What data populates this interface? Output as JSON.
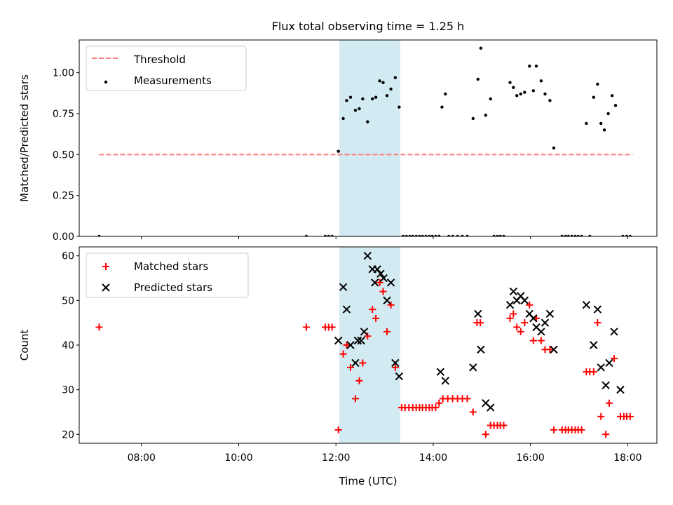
{
  "title": "Flux total observing time = 1.25 h",
  "colors": {
    "threshold": "#ff7f7f",
    "measurement": "#000000",
    "matched": "#ff0000",
    "predicted": "#000000",
    "shade": "#add8e6"
  },
  "chart_data": [
    {
      "type": "scatter",
      "ylabel": "Matched/Predicted stars",
      "ylim": [
        0,
        1.2
      ],
      "yticks": [
        "0.00",
        "0.25",
        "0.50",
        "0.75",
        "1.00"
      ],
      "xlim": [
        6.72,
        18.6
      ],
      "shaded_span": [
        12.07,
        13.32
      ],
      "legend": {
        "placement": "top-left",
        "entries": [
          "Threshold",
          "Measurements"
        ]
      },
      "threshold": {
        "name": "Threshold",
        "value": 0.5,
        "x_range": [
          7.13,
          18.1
        ]
      },
      "series": [
        {
          "name": "Measurements",
          "points": [
            [
              7.13,
              0
            ],
            [
              11.39,
              0
            ],
            [
              11.78,
              0
            ],
            [
              11.85,
              0
            ],
            [
              11.92,
              0
            ],
            [
              12.05,
              0.52
            ],
            [
              12.15,
              0.72
            ],
            [
              12.22,
              0.83
            ],
            [
              12.3,
              0.85
            ],
            [
              12.4,
              0.77
            ],
            [
              12.48,
              0.78
            ],
            [
              12.55,
              0.84
            ],
            [
              12.65,
              0.7
            ],
            [
              12.75,
              0.84
            ],
            [
              12.82,
              0.85
            ],
            [
              12.9,
              0.95
            ],
            [
              12.97,
              0.94
            ],
            [
              13.05,
              0.86
            ],
            [
              13.13,
              0.9
            ],
            [
              13.22,
              0.97
            ],
            [
              13.3,
              0.79
            ],
            [
              13.38,
              0
            ],
            [
              13.45,
              0
            ],
            [
              13.52,
              0
            ],
            [
              13.58,
              0
            ],
            [
              13.65,
              0
            ],
            [
              13.72,
              0
            ],
            [
              13.78,
              0
            ],
            [
              13.85,
              0
            ],
            [
              13.92,
              0
            ],
            [
              13.98,
              0
            ],
            [
              14.05,
              0
            ],
            [
              14.12,
              0
            ],
            [
              14.18,
              0.79
            ],
            [
              14.25,
              0.87
            ],
            [
              14.32,
              0
            ],
            [
              14.4,
              0
            ],
            [
              14.5,
              0
            ],
            [
              14.6,
              0
            ],
            [
              14.7,
              0
            ],
            [
              14.82,
              0.72
            ],
            [
              14.92,
              0.96
            ],
            [
              14.98,
              1.15
            ],
            [
              15.08,
              0.74
            ],
            [
              15.18,
              0.84
            ],
            [
              15.25,
              0
            ],
            [
              15.32,
              0
            ],
            [
              15.38,
              0
            ],
            [
              15.45,
              0
            ],
            [
              15.58,
              0.94
            ],
            [
              15.65,
              0.91
            ],
            [
              15.72,
              0.86
            ],
            [
              15.8,
              0.87
            ],
            [
              15.88,
              0.88
            ],
            [
              15.98,
              1.04
            ],
            [
              16.06,
              0.89
            ],
            [
              16.12,
              1.04
            ],
            [
              16.22,
              0.95
            ],
            [
              16.3,
              0.87
            ],
            [
              16.4,
              0.83
            ],
            [
              16.48,
              0.54
            ],
            [
              16.65,
              0
            ],
            [
              16.72,
              0
            ],
            [
              16.78,
              0
            ],
            [
              16.85,
              0
            ],
            [
              16.92,
              0
            ],
            [
              16.98,
              0
            ],
            [
              17.05,
              0
            ],
            [
              17.15,
              0.69
            ],
            [
              17.22,
              0
            ],
            [
              17.3,
              0.85
            ],
            [
              17.38,
              0.93
            ],
            [
              17.45,
              0.69
            ],
            [
              17.52,
              0.65
            ],
            [
              17.6,
              0.75
            ],
            [
              17.68,
              0.86
            ],
            [
              17.75,
              0.8
            ],
            [
              17.9,
              0
            ],
            [
              17.98,
              0
            ],
            [
              18.05,
              0
            ]
          ]
        }
      ]
    },
    {
      "type": "scatter",
      "xlabel": "Time (UTC)",
      "ylabel": "Count",
      "ylim": [
        18,
        62
      ],
      "yticks": [
        "20",
        "30",
        "40",
        "50",
        "60"
      ],
      "xlim": [
        6.72,
        18.6
      ],
      "xticks": [
        {
          "value": 8,
          "label": "08:00"
        },
        {
          "value": 10,
          "label": "10:00"
        },
        {
          "value": 12,
          "label": "12:00"
        },
        {
          "value": 14,
          "label": "14:00"
        },
        {
          "value": 16,
          "label": "16:00"
        },
        {
          "value": 18,
          "label": "18:00"
        }
      ],
      "shaded_span": [
        12.07,
        13.32
      ],
      "legend": {
        "placement": "top-left",
        "entries": [
          "Matched stars",
          "Predicted stars"
        ]
      },
      "series": [
        {
          "name": "Matched stars",
          "points": [
            [
              7.13,
              44
            ],
            [
              11.39,
              44
            ],
            [
              11.78,
              44
            ],
            [
              11.85,
              44
            ],
            [
              11.92,
              44
            ],
            [
              12.05,
              21
            ],
            [
              12.15,
              38
            ],
            [
              12.22,
              40
            ],
            [
              12.3,
              35
            ],
            [
              12.4,
              28
            ],
            [
              12.48,
              32
            ],
            [
              12.55,
              36
            ],
            [
              12.65,
              42
            ],
            [
              12.75,
              48
            ],
            [
              12.82,
              46
            ],
            [
              12.9,
              54
            ],
            [
              12.97,
              52
            ],
            [
              13.05,
              43
            ],
            [
              13.13,
              49
            ],
            [
              13.22,
              35
            ],
            [
              13.35,
              26
            ],
            [
              13.42,
              26
            ],
            [
              13.5,
              26
            ],
            [
              13.58,
              26
            ],
            [
              13.65,
              26
            ],
            [
              13.72,
              26
            ],
            [
              13.78,
              26
            ],
            [
              13.85,
              26
            ],
            [
              13.92,
              26
            ],
            [
              13.98,
              26
            ],
            [
              14.05,
              26
            ],
            [
              14.12,
              27
            ],
            [
              14.2,
              28
            ],
            [
              14.3,
              28
            ],
            [
              14.4,
              28
            ],
            [
              14.5,
              28
            ],
            [
              14.6,
              28
            ],
            [
              14.7,
              28
            ],
            [
              14.82,
              25
            ],
            [
              14.9,
              45
            ],
            [
              14.97,
              45
            ],
            [
              15.08,
              20
            ],
            [
              15.18,
              22
            ],
            [
              15.25,
              22
            ],
            [
              15.32,
              22
            ],
            [
              15.38,
              22
            ],
            [
              15.45,
              22
            ],
            [
              15.58,
              46
            ],
            [
              15.65,
              47
            ],
            [
              15.72,
              44
            ],
            [
              15.8,
              43
            ],
            [
              15.88,
              45
            ],
            [
              15.98,
              49
            ],
            [
              16.06,
              41
            ],
            [
              16.12,
              46
            ],
            [
              16.22,
              41
            ],
            [
              16.3,
              39
            ],
            [
              16.4,
              39
            ],
            [
              16.48,
              21
            ],
            [
              16.65,
              21
            ],
            [
              16.72,
              21
            ],
            [
              16.78,
              21
            ],
            [
              16.85,
              21
            ],
            [
              16.92,
              21
            ],
            [
              16.98,
              21
            ],
            [
              17.05,
              21
            ],
            [
              17.15,
              34
            ],
            [
              17.22,
              34
            ],
            [
              17.3,
              34
            ],
            [
              17.38,
              45
            ],
            [
              17.45,
              24
            ],
            [
              17.55,
              20
            ],
            [
              17.62,
              27
            ],
            [
              17.72,
              37
            ],
            [
              17.85,
              24
            ],
            [
              17.92,
              24
            ],
            [
              17.98,
              24
            ],
            [
              18.05,
              24
            ]
          ]
        },
        {
          "name": "Predicted stars",
          "points": [
            [
              12.05,
              41
            ],
            [
              12.15,
              53
            ],
            [
              12.22,
              48
            ],
            [
              12.3,
              40
            ],
            [
              12.4,
              36
            ],
            [
              12.45,
              41
            ],
            [
              12.52,
              41
            ],
            [
              12.58,
              43
            ],
            [
              12.65,
              60
            ],
            [
              12.75,
              57
            ],
            [
              12.8,
              54
            ],
            [
              12.85,
              57
            ],
            [
              12.92,
              56
            ],
            [
              12.98,
              55
            ],
            [
              13.05,
              50
            ],
            [
              13.13,
              54
            ],
            [
              13.22,
              36
            ],
            [
              13.3,
              33
            ],
            [
              14.15,
              34
            ],
            [
              14.25,
              32
            ],
            [
              14.82,
              35
            ],
            [
              14.92,
              47
            ],
            [
              14.98,
              39
            ],
            [
              15.08,
              27
            ],
            [
              15.18,
              26
            ],
            [
              15.58,
              49
            ],
            [
              15.65,
              52
            ],
            [
              15.72,
              50
            ],
            [
              15.8,
              51
            ],
            [
              15.88,
              50
            ],
            [
              15.98,
              47
            ],
            [
              16.06,
              46
            ],
            [
              16.12,
              44
            ],
            [
              16.22,
              43
            ],
            [
              16.3,
              45
            ],
            [
              16.4,
              47
            ],
            [
              16.48,
              39
            ],
            [
              17.15,
              49
            ],
            [
              17.3,
              40
            ],
            [
              17.38,
              48
            ],
            [
              17.45,
              35
            ],
            [
              17.55,
              31
            ],
            [
              17.62,
              36
            ],
            [
              17.72,
              43
            ],
            [
              17.85,
              30
            ]
          ]
        }
      ]
    }
  ]
}
